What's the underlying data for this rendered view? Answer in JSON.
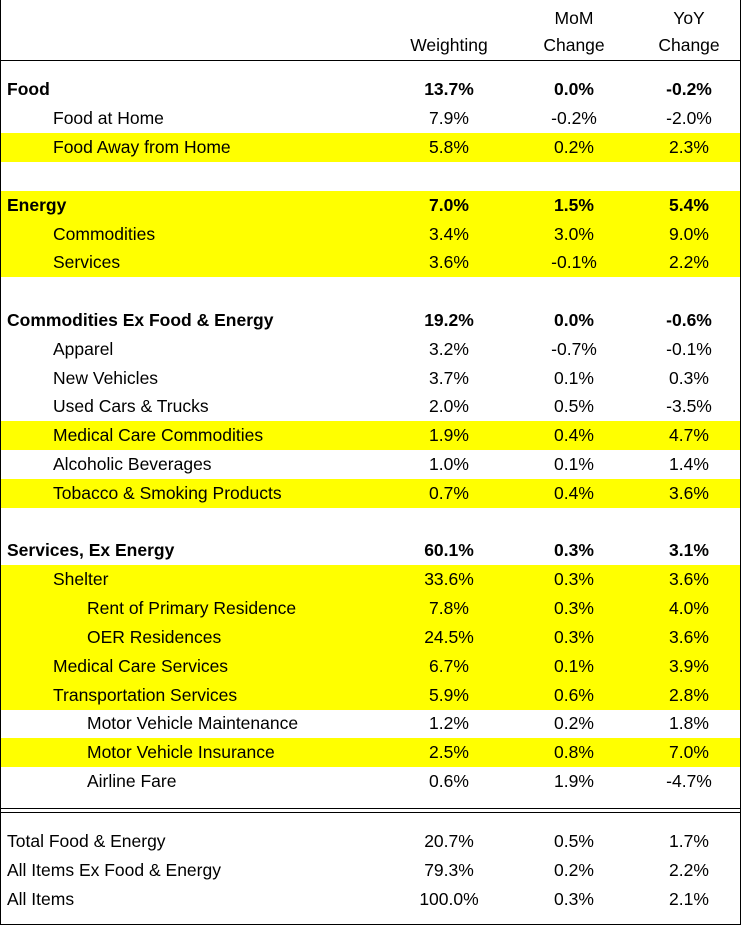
{
  "headers": {
    "weighting": "Weighting",
    "mom_top": "MoM",
    "mom_bottom": "Change",
    "yoy_top": "YoY",
    "yoy_bottom": "Change"
  },
  "colors": {
    "highlight": "#ffff00",
    "border": "#000000"
  },
  "rows": [
    {
      "label": "Food",
      "weighting": "13.7%",
      "mom": "0.0%",
      "yoy": "-0.2%",
      "bold": true,
      "highlight": false
    },
    {
      "label": "Food at Home",
      "weighting": "7.9%",
      "mom": "-0.2%",
      "yoy": "-2.0%",
      "bold": false,
      "highlight": false
    },
    {
      "label": "Food Away from Home",
      "weighting": "5.8%",
      "mom": "0.2%",
      "yoy": "2.3%",
      "bold": false,
      "highlight": true
    },
    {
      "label": "Energy",
      "weighting": "7.0%",
      "mom": "1.5%",
      "yoy": "5.4%",
      "bold": true,
      "highlight": true
    },
    {
      "label": "Commodities",
      "weighting": "3.4%",
      "mom": "3.0%",
      "yoy": "9.0%",
      "bold": false,
      "highlight": true
    },
    {
      "label": "Services",
      "weighting": "3.6%",
      "mom": "-0.1%",
      "yoy": "2.2%",
      "bold": false,
      "highlight": true
    },
    {
      "label": "Commodities Ex Food & Energy",
      "weighting": "19.2%",
      "mom": "0.0%",
      "yoy": "-0.6%",
      "bold": true,
      "highlight": false
    },
    {
      "label": "Apparel",
      "weighting": "3.2%",
      "mom": "-0.7%",
      "yoy": "-0.1%",
      "bold": false,
      "highlight": false
    },
    {
      "label": "New Vehicles",
      "weighting": "3.7%",
      "mom": "0.1%",
      "yoy": "0.3%",
      "bold": false,
      "highlight": false
    },
    {
      "label": "Used Cars & Trucks",
      "weighting": "2.0%",
      "mom": "0.5%",
      "yoy": "-3.5%",
      "bold": false,
      "highlight": false
    },
    {
      "label": "Medical Care Commodities",
      "weighting": "1.9%",
      "mom": "0.4%",
      "yoy": "4.7%",
      "bold": false,
      "highlight": true
    },
    {
      "label": "Alcoholic Beverages",
      "weighting": "1.0%",
      "mom": "0.1%",
      "yoy": "1.4%",
      "bold": false,
      "highlight": false
    },
    {
      "label": "Tobacco & Smoking Products",
      "weighting": "0.7%",
      "mom": "0.4%",
      "yoy": "3.6%",
      "bold": false,
      "highlight": true
    },
    {
      "label": "Services, Ex Energy",
      "weighting": "60.1%",
      "mom": "0.3%",
      "yoy": "3.1%",
      "bold": true,
      "highlight": false
    },
    {
      "label": "Shelter",
      "weighting": "33.6%",
      "mom": "0.3%",
      "yoy": "3.6%",
      "bold": false,
      "highlight": true
    },
    {
      "label": "Rent of Primary Residence",
      "weighting": "7.8%",
      "mom": "0.3%",
      "yoy": "4.0%",
      "bold": false,
      "highlight": true
    },
    {
      "label": "OER Residences",
      "weighting": "24.5%",
      "mom": "0.3%",
      "yoy": "3.6%",
      "bold": false,
      "highlight": true
    },
    {
      "label": "Medical Care Services",
      "weighting": "6.7%",
      "mom": "0.1%",
      "yoy": "3.9%",
      "bold": false,
      "highlight": true
    },
    {
      "label": "Transportation Services",
      "weighting": "5.9%",
      "mom": "0.6%",
      "yoy": "2.8%",
      "bold": false,
      "highlight": true
    },
    {
      "label": "Motor Vehicle Maintenance",
      "weighting": "1.2%",
      "mom": "0.2%",
      "yoy": "1.8%",
      "bold": false,
      "highlight": false
    },
    {
      "label": "Motor Vehicle Insurance",
      "weighting": "2.5%",
      "mom": "0.8%",
      "yoy": "7.0%",
      "bold": false,
      "highlight": true
    },
    {
      "label": "Airline Fare",
      "weighting": "0.6%",
      "mom": "1.9%",
      "yoy": "-4.7%",
      "bold": false,
      "highlight": false
    },
    {
      "label": "Total Food &  Energy",
      "weighting": "20.7%",
      "mom": "0.5%",
      "yoy": "1.7%",
      "bold": false,
      "highlight": false
    },
    {
      "label": "All Items Ex Food & Energy",
      "weighting": "79.3%",
      "mom": "0.2%",
      "yoy": "2.2%",
      "bold": false,
      "highlight": false
    },
    {
      "label": "All Items",
      "weighting": "100.0%",
      "mom": "0.3%",
      "yoy": "2.1%",
      "bold": false,
      "highlight": false
    }
  ]
}
